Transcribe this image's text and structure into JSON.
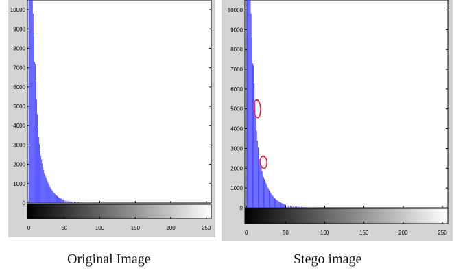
{
  "captions": {
    "left": "Original Image",
    "right": "Stego image"
  },
  "colors": {
    "bar": "#3333ff",
    "panel_bg": "#d4d4d4",
    "annotation": "#e8202a"
  },
  "chart_data": [
    {
      "type": "bar",
      "title": "",
      "xlabel": "",
      "ylabel": "",
      "ylim": [
        0,
        10500
      ],
      "xlim": [
        -2,
        257
      ],
      "yticks": [
        0,
        1000,
        2000,
        3000,
        4000,
        5000,
        6000,
        7000,
        8000,
        9000,
        10000
      ],
      "xticks": [
        0,
        50,
        100,
        150,
        200,
        250
      ],
      "grid": false,
      "colorbar": "grayscale 0-255",
      "x": [
        0,
        1,
        2,
        3,
        4,
        5,
        6,
        7,
        8,
        9,
        10,
        11,
        12,
        13,
        14,
        15,
        16,
        17,
        18,
        19,
        20,
        21,
        22,
        23,
        24,
        25,
        26,
        27,
        28,
        29,
        30,
        31,
        32,
        33,
        34,
        35,
        36,
        37,
        38,
        39,
        40,
        41,
        42,
        43,
        44,
        45,
        46,
        47,
        48,
        49,
        50,
        52,
        54,
        56,
        58,
        60,
        62,
        64,
        66,
        68,
        70,
        72,
        74,
        76,
        78,
        80,
        82,
        84,
        86,
        88,
        90,
        95,
        100,
        105,
        110,
        115,
        120
      ],
      "values": [
        10500,
        10500,
        10500,
        10500,
        10500,
        10500,
        9800,
        8600,
        7300,
        7200,
        6300,
        5350,
        4600,
        3900,
        3400,
        3050,
        2700,
        2450,
        2250,
        2050,
        1850,
        1700,
        1550,
        1450,
        1350,
        1250,
        1150,
        1050,
        980,
        900,
        830,
        760,
        700,
        640,
        590,
        540,
        500,
        460,
        420,
        390,
        360,
        330,
        300,
        280,
        260,
        240,
        220,
        200,
        185,
        170,
        155,
        130,
        115,
        100,
        90,
        80,
        70,
        62,
        55,
        48,
        42,
        36,
        30,
        26,
        22,
        18,
        15,
        12,
        10,
        8,
        6,
        5,
        3,
        2,
        2,
        1,
        1
      ]
    },
    {
      "type": "bar",
      "title": "",
      "xlabel": "",
      "ylabel": "",
      "ylim": [
        0,
        10500
      ],
      "xlim": [
        -2,
        257
      ],
      "yticks": [
        0,
        1000,
        2000,
        3000,
        4000,
        5000,
        6000,
        7000,
        8000,
        9000,
        10000
      ],
      "xticks": [
        0,
        50,
        100,
        150,
        200,
        250
      ],
      "grid": false,
      "colorbar": "grayscale 0-255",
      "annotations": [
        {
          "shape": "loop",
          "x": 14,
          "y": 5000
        },
        {
          "shape": "loop",
          "x": 22,
          "y": 2300
        }
      ],
      "x": [
        0,
        1,
        2,
        3,
        4,
        5,
        6,
        7,
        8,
        9,
        10,
        11,
        12,
        13,
        14,
        15,
        16,
        17,
        18,
        19,
        20,
        21,
        22,
        23,
        24,
        25,
        26,
        27,
        28,
        29,
        30,
        31,
        32,
        33,
        34,
        35,
        36,
        37,
        38,
        39,
        40,
        41,
        42,
        43,
        44,
        45,
        46,
        47,
        48,
        49,
        50,
        52,
        54,
        56,
        58,
        60,
        62,
        64,
        66,
        68,
        70,
        72,
        74,
        76,
        78,
        80,
        82,
        84,
        86,
        88,
        90,
        95,
        100,
        105,
        110,
        115,
        120
      ],
      "values": [
        10500,
        10500,
        10500,
        10500,
        10500,
        10500,
        9800,
        8600,
        7300,
        7200,
        6300,
        5300,
        4600,
        3900,
        3400,
        3050,
        2700,
        2450,
        2250,
        2050,
        1850,
        1700,
        1550,
        1450,
        1350,
        1250,
        1150,
        1050,
        980,
        900,
        830,
        760,
        700,
        640,
        590,
        540,
        500,
        460,
        420,
        390,
        360,
        330,
        300,
        280,
        260,
        240,
        220,
        200,
        185,
        170,
        155,
        130,
        115,
        100,
        90,
        80,
        70,
        62,
        55,
        48,
        42,
        36,
        30,
        26,
        22,
        18,
        15,
        12,
        10,
        8,
        6,
        5,
        3,
        2,
        2,
        1,
        1
      ]
    }
  ]
}
